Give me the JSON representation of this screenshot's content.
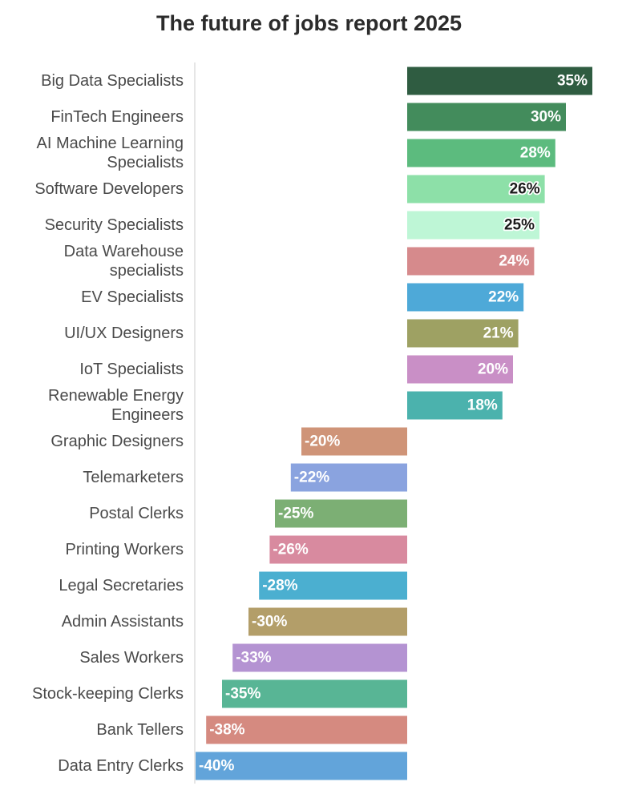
{
  "chart_data": {
    "type": "bar",
    "orientation": "horizontal",
    "title": "The future of jobs report 2025",
    "xlabel": "",
    "ylabel": "",
    "xlim": [
      -40,
      35
    ],
    "grid": false,
    "legend": "none",
    "categories": [
      "Big Data Specialists",
      "FinTech Engineers",
      "AI Machine Learning Specialists",
      "Software Developers",
      "Security Specialists",
      "Data Warehouse specialists",
      "EV Specialists",
      "UI/UX Designers",
      "IoT Specialists",
      "Renewable Energy Engineers",
      "Graphic Designers",
      "Telemarketers",
      "Postal Clerks",
      "Printing Workers",
      "Legal Secretaries",
      "Admin Assistants",
      "Sales Workers",
      "Stock-keeping Clerks",
      "Bank Tellers",
      "Data Entry Clerks"
    ],
    "values": [
      35,
      30,
      28,
      26,
      25,
      24,
      22,
      21,
      20,
      18,
      -20,
      -22,
      -25,
      -26,
      -28,
      -30,
      -33,
      -35,
      -38,
      -40
    ],
    "data_labels": [
      "35%",
      "30%",
      "28%",
      "26%",
      "25%",
      "24%",
      "22%",
      "21%",
      "20%",
      "18%",
      "-20%",
      "-22%",
      "-25%",
      "-26%",
      "-28%",
      "-30%",
      "-33%",
      "-35%",
      "-38%",
      "-40%"
    ],
    "colors": [
      "#2f5c41",
      "#438c5c",
      "#5cbb7e",
      "#8de0a8",
      "#bef6d6",
      "#d68a8c",
      "#4ea9d8",
      "#9ea163",
      "#c98fc6",
      "#4bb2ad",
      "#cf9478",
      "#8aa3df",
      "#7caf74",
      "#d88a9f",
      "#4bafd0",
      "#b39e69",
      "#b493d2",
      "#58b595",
      "#d58a80",
      "#62a4da"
    ],
    "label_fill": [
      "#ffffff",
      "#ffffff",
      "#ffffff",
      "#1a1a1a",
      "#1a1a1a",
      "#ffffff",
      "#ffffff",
      "#ffffff",
      "#ffffff",
      "#ffffff",
      "#ffffff",
      "#ffffff",
      "#ffffff",
      "#ffffff",
      "#ffffff",
      "#ffffff",
      "#ffffff",
      "#ffffff",
      "#ffffff",
      "#ffffff"
    ]
  }
}
